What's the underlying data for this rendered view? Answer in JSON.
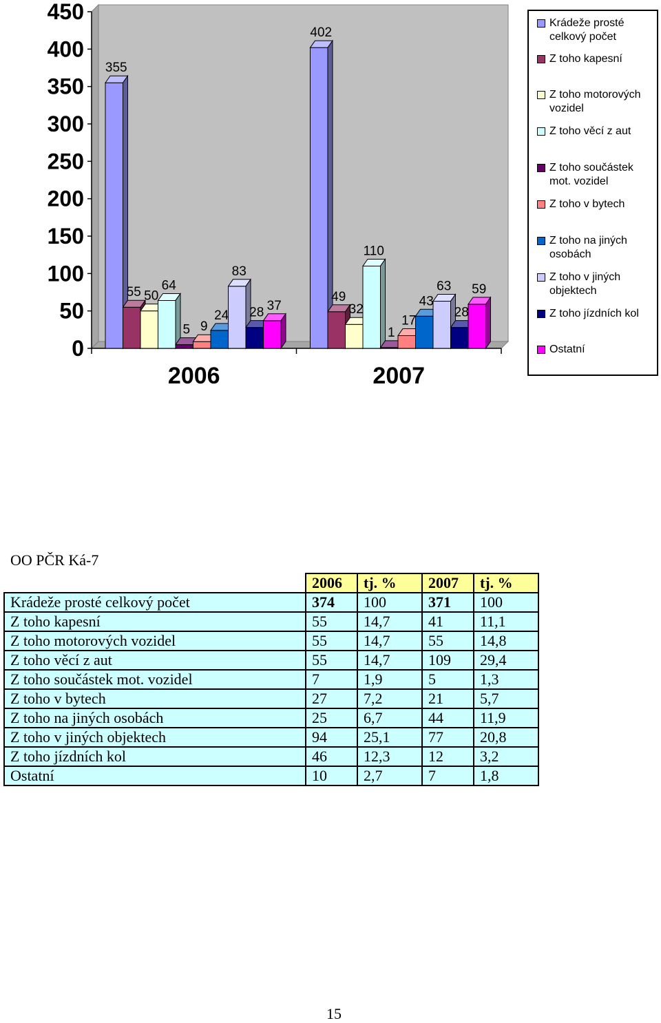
{
  "chart_data": {
    "type": "bar",
    "categories": [
      "2006",
      "2007"
    ],
    "series": [
      {
        "name": "Krádeže prosté celkový počet",
        "values": [
          355,
          402
        ],
        "color": "#9999ff"
      },
      {
        "name": "Z toho kapesní",
        "values": [
          55,
          49
        ],
        "color": "#993366"
      },
      {
        "name": "Z toho motorových vozidel",
        "values": [
          50,
          32
        ],
        "color": "#ffffcc"
      },
      {
        "name": "Z toho věcí z aut",
        "values": [
          64,
          110
        ],
        "color": "#ccffff"
      },
      {
        "name": "Z toho součástek mot. vozidel",
        "values": [
          5,
          1
        ],
        "color": "#660066"
      },
      {
        "name": "Z toho v bytech",
        "values": [
          9,
          17
        ],
        "color": "#ff8080"
      },
      {
        "name": "Z toho na jiných osobách",
        "values": [
          24,
          43
        ],
        "color": "#0066cc"
      },
      {
        "name": "Z toho v jiných objektech",
        "values": [
          83,
          63
        ],
        "color": "#ccccff"
      },
      {
        "name": "Z toho jízdních kol",
        "values": [
          28,
          28
        ],
        "color": "#000080"
      },
      {
        "name": "Ostatní",
        "values": [
          37,
          59
        ],
        "color": "#ff00ff"
      }
    ],
    "yticks": [
      "0",
      "50",
      "100",
      "150",
      "200",
      "250",
      "300",
      "350",
      "400",
      "450"
    ],
    "ylim": [
      0,
      450
    ],
    "legend": "right",
    "grid": false
  },
  "table": {
    "unit_title": "OO PČR Ká-7",
    "headers": [
      "2006",
      "tj. %",
      "2007",
      "tj. %"
    ],
    "rows": [
      {
        "label": "Krádeže prosté celkový počet",
        "v2006": "374",
        "p2006": "100",
        "v2007": "371",
        "p2007": "100"
      },
      {
        "label": "Z toho kapesní",
        "v2006": "55",
        "p2006": "14,7",
        "v2007": "41",
        "p2007": "11,1"
      },
      {
        "label": "Z toho motorových vozidel",
        "v2006": "55",
        "p2006": "14,7",
        "v2007": "55",
        "p2007": "14,8"
      },
      {
        "label": "Z toho věcí z aut",
        "v2006": "55",
        "p2006": "14,7",
        "v2007": "109",
        "p2007": "29,4"
      },
      {
        "label": "Z toho součástek mot. vozidel",
        "v2006": "7",
        "p2006": "1,9",
        "v2007": "5",
        "p2007": "1,3"
      },
      {
        "label": "Z toho v bytech",
        "v2006": "27",
        "p2006": "7,2",
        "v2007": "21",
        "p2007": "5,7"
      },
      {
        "label": "Z toho na jiných osobách",
        "v2006": "25",
        "p2006": "6,7",
        "v2007": "44",
        "p2007": "11,9"
      },
      {
        "label": "Z toho v jiných objektech",
        "v2006": "94",
        "p2006": "25,1",
        "v2007": "77",
        "p2007": "20,8"
      },
      {
        "label": "Z toho jízdních kol",
        "v2006": "46",
        "p2006": "12,3",
        "v2007": "12",
        "p2007": "3,2"
      },
      {
        "label": "Ostatní",
        "v2006": "10",
        "p2006": "2,7",
        "v2007": "7",
        "p2007": "1,8"
      }
    ]
  },
  "page_number": "15"
}
